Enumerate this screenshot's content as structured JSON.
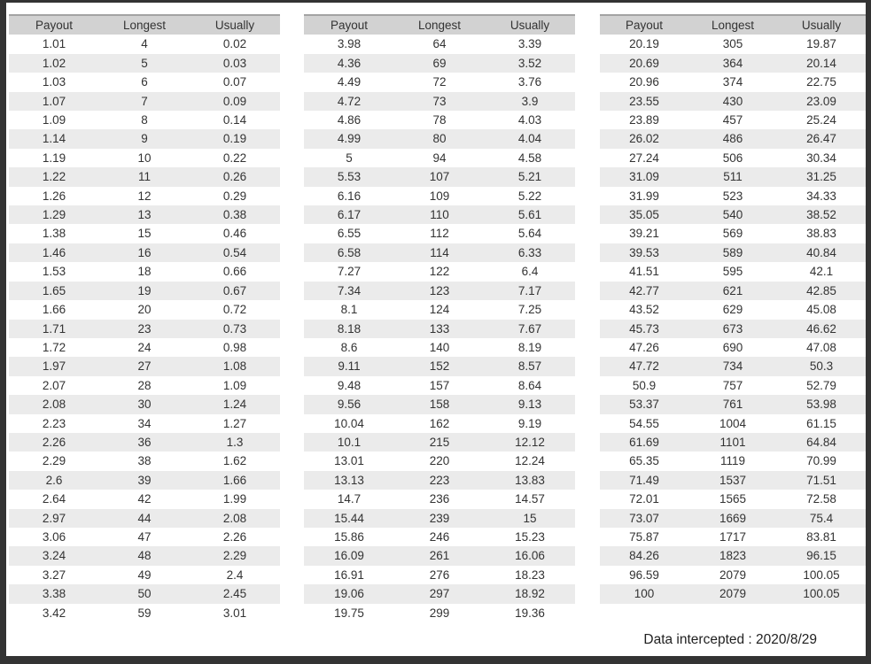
{
  "columns": [
    "Payout",
    "Longest",
    "Usually"
  ],
  "tables": [
    {
      "rows": [
        [
          "1.01",
          "4",
          "0.02"
        ],
        [
          "1.02",
          "5",
          "0.03"
        ],
        [
          "1.03",
          "6",
          "0.07"
        ],
        [
          "1.07",
          "7",
          "0.09"
        ],
        [
          "1.09",
          "8",
          "0.14"
        ],
        [
          "1.14",
          "9",
          "0.19"
        ],
        [
          "1.19",
          "10",
          "0.22"
        ],
        [
          "1.22",
          "11",
          "0.26"
        ],
        [
          "1.26",
          "12",
          "0.29"
        ],
        [
          "1.29",
          "13",
          "0.38"
        ],
        [
          "1.38",
          "15",
          "0.46"
        ],
        [
          "1.46",
          "16",
          "0.54"
        ],
        [
          "1.53",
          "18",
          "0.66"
        ],
        [
          "1.65",
          "19",
          "0.67"
        ],
        [
          "1.66",
          "20",
          "0.72"
        ],
        [
          "1.71",
          "23",
          "0.73"
        ],
        [
          "1.72",
          "24",
          "0.98"
        ],
        [
          "1.97",
          "27",
          "1.08"
        ],
        [
          "2.07",
          "28",
          "1.09"
        ],
        [
          "2.08",
          "30",
          "1.24"
        ],
        [
          "2.23",
          "34",
          "1.27"
        ],
        [
          "2.26",
          "36",
          "1.3"
        ],
        [
          "2.29",
          "38",
          "1.62"
        ],
        [
          "2.6",
          "39",
          "1.66"
        ],
        [
          "2.64",
          "42",
          "1.99"
        ],
        [
          "2.97",
          "44",
          "2.08"
        ],
        [
          "3.06",
          "47",
          "2.26"
        ],
        [
          "3.24",
          "48",
          "2.29"
        ],
        [
          "3.27",
          "49",
          "2.4"
        ],
        [
          "3.38",
          "50",
          "2.45"
        ],
        [
          "3.42",
          "59",
          "3.01"
        ]
      ]
    },
    {
      "rows": [
        [
          "3.98",
          "64",
          "3.39"
        ],
        [
          "4.36",
          "69",
          "3.52"
        ],
        [
          "4.49",
          "72",
          "3.76"
        ],
        [
          "4.72",
          "73",
          "3.9"
        ],
        [
          "4.86",
          "78",
          "4.03"
        ],
        [
          "4.99",
          "80",
          "4.04"
        ],
        [
          "5",
          "94",
          "4.58"
        ],
        [
          "5.53",
          "107",
          "5.21"
        ],
        [
          "6.16",
          "109",
          "5.22"
        ],
        [
          "6.17",
          "110",
          "5.61"
        ],
        [
          "6.55",
          "112",
          "5.64"
        ],
        [
          "6.58",
          "114",
          "6.33"
        ],
        [
          "7.27",
          "122",
          "6.4"
        ],
        [
          "7.34",
          "123",
          "7.17"
        ],
        [
          "8.1",
          "124",
          "7.25"
        ],
        [
          "8.18",
          "133",
          "7.67"
        ],
        [
          "8.6",
          "140",
          "8.19"
        ],
        [
          "9.11",
          "152",
          "8.57"
        ],
        [
          "9.48",
          "157",
          "8.64"
        ],
        [
          "9.56",
          "158",
          "9.13"
        ],
        [
          "10.04",
          "162",
          "9.19"
        ],
        [
          "10.1",
          "215",
          "12.12"
        ],
        [
          "13.01",
          "220",
          "12.24"
        ],
        [
          "13.13",
          "223",
          "13.83"
        ],
        [
          "14.7",
          "236",
          "14.57"
        ],
        [
          "15.44",
          "239",
          "15"
        ],
        [
          "15.86",
          "246",
          "15.23"
        ],
        [
          "16.09",
          "261",
          "16.06"
        ],
        [
          "16.91",
          "276",
          "18.23"
        ],
        [
          "19.06",
          "297",
          "18.92"
        ],
        [
          "19.75",
          "299",
          "19.36"
        ]
      ]
    },
    {
      "rows": [
        [
          "20.19",
          "305",
          "19.87"
        ],
        [
          "20.69",
          "364",
          "20.14"
        ],
        [
          "20.96",
          "374",
          "22.75"
        ],
        [
          "23.55",
          "430",
          "23.09"
        ],
        [
          "23.89",
          "457",
          "25.24"
        ],
        [
          "26.02",
          "486",
          "26.47"
        ],
        [
          "27.24",
          "506",
          "30.34"
        ],
        [
          "31.09",
          "511",
          "31.25"
        ],
        [
          "31.99",
          "523",
          "34.33"
        ],
        [
          "35.05",
          "540",
          "38.52"
        ],
        [
          "39.21",
          "569",
          "38.83"
        ],
        [
          "39.53",
          "589",
          "40.84"
        ],
        [
          "41.51",
          "595",
          "42.1"
        ],
        [
          "42.77",
          "621",
          "42.85"
        ],
        [
          "43.52",
          "629",
          "45.08"
        ],
        [
          "45.73",
          "673",
          "46.62"
        ],
        [
          "47.26",
          "690",
          "47.08"
        ],
        [
          "47.72",
          "734",
          "50.3"
        ],
        [
          "50.9",
          "757",
          "52.79"
        ],
        [
          "53.37",
          "761",
          "53.98"
        ],
        [
          "54.55",
          "1004",
          "61.15"
        ],
        [
          "61.69",
          "1101",
          "64.84"
        ],
        [
          "65.35",
          "1119",
          "70.99"
        ],
        [
          "71.49",
          "1537",
          "71.51"
        ],
        [
          "72.01",
          "1565",
          "72.58"
        ],
        [
          "73.07",
          "1669",
          "75.4"
        ],
        [
          "75.87",
          "1717",
          "83.81"
        ],
        [
          "84.26",
          "1823",
          "96.15"
        ],
        [
          "96.59",
          "2079",
          "100.05"
        ],
        [
          "100",
          "2079",
          "100.05"
        ]
      ]
    }
  ],
  "footer": {
    "note": "Data intercepted : 2020/8/29"
  },
  "colors": {
    "frame": "#333333",
    "header-bg": "#d2d2d2",
    "header-border": "#a3a3a3",
    "band-bg": "#ebebeb",
    "text": "#333333"
  }
}
